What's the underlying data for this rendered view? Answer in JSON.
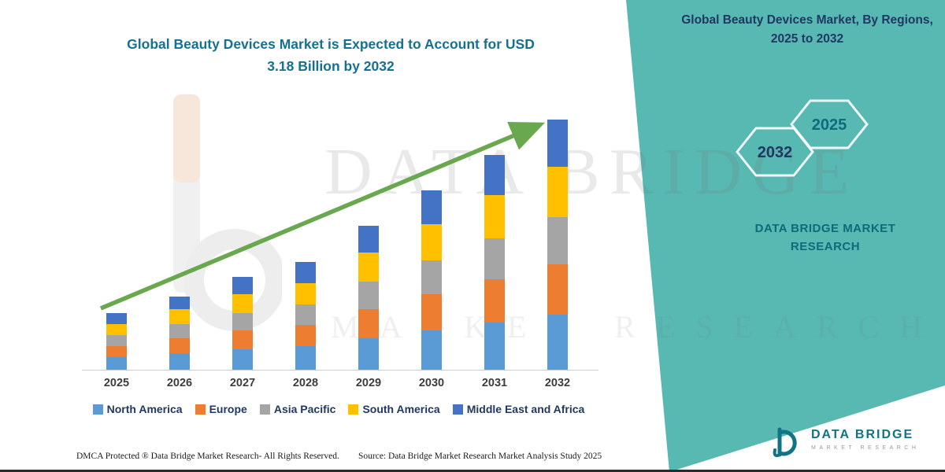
{
  "header": {
    "main_title_line1": "Global Beauty Devices Market is Expected to Account for USD",
    "main_title_line2": "3.18 Billion by 2032",
    "panel_title": "Global Beauty Devices Market, By Regions, 2025 to 2032"
  },
  "panel": {
    "background_color": "#58b8b2",
    "hexagon_years": [
      "2032",
      "2025"
    ],
    "brand_line1": "DATA BRIDGE MARKET",
    "brand_line2": "RESEARCH"
  },
  "watermark": {
    "line1": "DATA BRIDGE",
    "line2": "MARKET RESEARCH"
  },
  "chart_data": {
    "type": "bar",
    "variant": "stacked",
    "title": "Global Beauty Devices Market is Expected to Account for USD 3.18 Billion by 2032",
    "unit": "USD Billion",
    "xlabel": "",
    "ylabel": "",
    "grid": false,
    "legend_position": "bottom",
    "ylim": [
      0,
      3.3
    ],
    "categories": [
      "2025",
      "2026",
      "2027",
      "2028",
      "2029",
      "2030",
      "2031",
      "2032"
    ],
    "totals": [
      0.72,
      0.93,
      1.18,
      1.37,
      1.83,
      2.28,
      2.73,
      3.18
    ],
    "series": [
      {
        "name": "North America",
        "color": "#5b9bd5",
        "values": [
          0.16,
          0.21,
          0.26,
          0.3,
          0.4,
          0.5,
          0.6,
          0.7
        ]
      },
      {
        "name": "Europe",
        "color": "#ed7d31",
        "values": [
          0.14,
          0.19,
          0.24,
          0.27,
          0.37,
          0.46,
          0.55,
          0.64
        ]
      },
      {
        "name": "Asia Pacific",
        "color": "#a5a5a5",
        "values": [
          0.14,
          0.18,
          0.22,
          0.26,
          0.35,
          0.43,
          0.52,
          0.6
        ]
      },
      {
        "name": "South America",
        "color": "#ffc000",
        "values": [
          0.14,
          0.19,
          0.24,
          0.27,
          0.37,
          0.46,
          0.55,
          0.64
        ]
      },
      {
        "name": "Middle East and Africa",
        "color": "#4472c4",
        "values": [
          0.14,
          0.16,
          0.22,
          0.27,
          0.34,
          0.43,
          0.51,
          0.6
        ]
      }
    ],
    "trend_arrow": true,
    "trend_arrow_color": "#6aa84f"
  },
  "footer": {
    "dmca": "DMCA Protected ® Data Bridge Market Research-  All Rights Reserved.",
    "source": "Source: Data Bridge Market Research  Market Analysis Study 2025"
  },
  "logo": {
    "title": "DATA BRIDGE",
    "subtitle": "MARKET RESEARCH"
  }
}
